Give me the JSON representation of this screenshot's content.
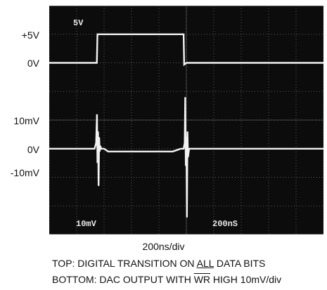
{
  "chart_data": {
    "type": "line",
    "title": "",
    "left_labels": [
      "+5V",
      "0V",
      "10mV",
      "0V",
      "-10mV"
    ],
    "screen_text": {
      "top_left": "5V",
      "bottom_left": "10mV",
      "bottom_center": "200nS"
    },
    "xlabel": "200ns/div",
    "x_unit": "ns",
    "x_divisions": 10,
    "series": [
      {
        "x": [
          0,
          347,
          352,
          980,
          984,
          1001,
          2000
        ],
        "y": [
          0,
          0,
          5,
          5,
          -0.3,
          0,
          0
        ]
      },
      {
        "x": [
          0,
          300,
          330,
          342,
          348,
          352,
          356,
          360,
          364,
          368,
          372,
          380,
          400,
          430,
          900,
          960,
          980,
          988,
          992,
          996,
          1000,
          1004,
          1008,
          1012,
          1020,
          1040,
          1080,
          2000
        ],
        "y": [
          0,
          0,
          0,
          2,
          12,
          -5,
          6,
          -13,
          4,
          -1,
          1,
          0,
          0,
          -1,
          -1,
          0,
          0,
          2,
          18,
          -6,
          4,
          -24,
          6,
          -3,
          0,
          0,
          0,
          0
        ]
      }
    ]
  },
  "caption": {
    "line1_pre": "TOP: DIGITAL TRANSITION ON ",
    "line1_emph": "ALL",
    "line1_post": " DATA BITS",
    "line2_pre": "BOTTOM: DAC OUTPUT WITH ",
    "line2_emph": "WR",
    "line2_post": " HIGH 10mV/div"
  }
}
